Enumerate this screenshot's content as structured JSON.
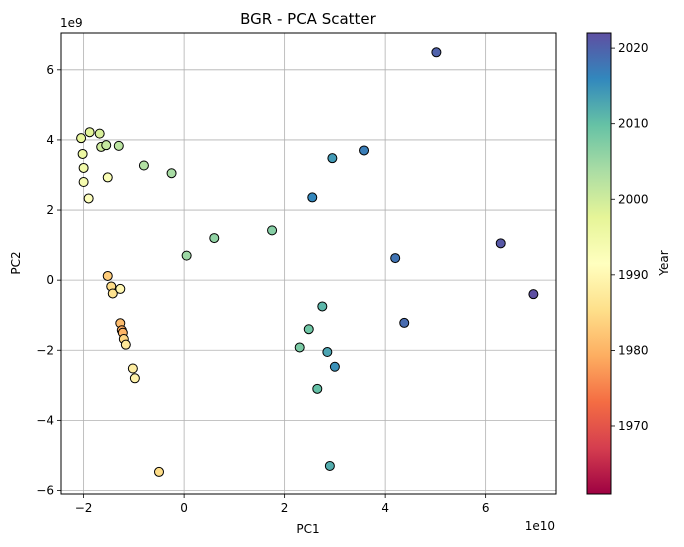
{
  "chart_data": {
    "type": "scatter",
    "title": "BGR - PCA Scatter",
    "xlabel": "PC1",
    "ylabel": "PC2",
    "x_offset_label": "1e10",
    "y_offset_label": "1e9",
    "xlim": [
      -2.45,
      7.4
    ],
    "ylim": [
      -6.1,
      7.05
    ],
    "x_ticks": [
      -2,
      0,
      2,
      4,
      6
    ],
    "y_ticks": [
      -6,
      -4,
      -2,
      0,
      2,
      4,
      6
    ],
    "grid": true,
    "colorbar": {
      "label": "Year",
      "min": 1961,
      "max": 2022,
      "ticks": [
        1970,
        1980,
        1990,
        2000,
        2010,
        2020
      ],
      "colormap": "Spectral"
    },
    "points": [
      {
        "x": -2.05,
        "y": 4.05,
        "year": 1997
      },
      {
        "x": -2.02,
        "y": 3.6,
        "year": 1996
      },
      {
        "x": -2.0,
        "y": 3.2,
        "year": 1995
      },
      {
        "x": -2.0,
        "y": 2.8,
        "year": 1994
      },
      {
        "x": -1.9,
        "y": 2.33,
        "year": 1992
      },
      {
        "x": -1.88,
        "y": 4.22,
        "year": 1998
      },
      {
        "x": -1.68,
        "y": 4.18,
        "year": 1999
      },
      {
        "x": -1.65,
        "y": 3.8,
        "year": 2000
      },
      {
        "x": -1.55,
        "y": 3.85,
        "year": 2001
      },
      {
        "x": -1.52,
        "y": 2.93,
        "year": 1993
      },
      {
        "x": -1.3,
        "y": 3.83,
        "year": 2002
      },
      {
        "x": -0.8,
        "y": 3.27,
        "year": 2003
      },
      {
        "x": -0.25,
        "y": 3.05,
        "year": 2004
      },
      {
        "x": 0.05,
        "y": 0.7,
        "year": 2005
      },
      {
        "x": 0.6,
        "y": 1.2,
        "year": 2006
      },
      {
        "x": 1.75,
        "y": 1.42,
        "year": 2007
      },
      {
        "x": 2.3,
        "y": -1.92,
        "year": 2008
      },
      {
        "x": 2.48,
        "y": -1.4,
        "year": 2009
      },
      {
        "x": 2.55,
        "y": 2.36,
        "year": 2016
      },
      {
        "x": 2.65,
        "y": -3.1,
        "year": 2010
      },
      {
        "x": 2.75,
        "y": -0.75,
        "year": 2011
      },
      {
        "x": 2.85,
        "y": -2.05,
        "year": 2013
      },
      {
        "x": 2.9,
        "y": -5.3,
        "year": 2012
      },
      {
        "x": 2.95,
        "y": 3.48,
        "year": 2014
      },
      {
        "x": 3.0,
        "y": -2.47,
        "year": 2015
      },
      {
        "x": 3.58,
        "y": 3.7,
        "year": 2017
      },
      {
        "x": 4.2,
        "y": 0.63,
        "year": 2018
      },
      {
        "x": 4.38,
        "y": -1.22,
        "year": 2019
      },
      {
        "x": 5.02,
        "y": 6.5,
        "year": 2020
      },
      {
        "x": 6.3,
        "y": 1.05,
        "year": 2021
      },
      {
        "x": 6.95,
        "y": -0.4,
        "year": 2022
      },
      {
        "x": -1.52,
        "y": 0.12,
        "year": 1983
      },
      {
        "x": -1.45,
        "y": -0.18,
        "year": 1985
      },
      {
        "x": -1.42,
        "y": -0.38,
        "year": 1986
      },
      {
        "x": -1.27,
        "y": -0.25,
        "year": 1990
      },
      {
        "x": -1.27,
        "y": -1.23,
        "year": 1981
      },
      {
        "x": -1.24,
        "y": -1.43,
        "year": 1979
      },
      {
        "x": -1.22,
        "y": -1.5,
        "year": 1980
      },
      {
        "x": -1.2,
        "y": -1.68,
        "year": 1984
      },
      {
        "x": -1.16,
        "y": -1.84,
        "year": 1987
      },
      {
        "x": -1.02,
        "y": -2.52,
        "year": 1988
      },
      {
        "x": -0.98,
        "y": -2.8,
        "year": 1989
      },
      {
        "x": -0.5,
        "y": -5.47,
        "year": 1985
      }
    ]
  }
}
